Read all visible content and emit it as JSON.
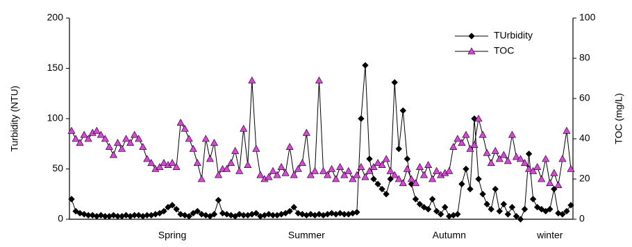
{
  "chart_data": {
    "type": "line",
    "y_label": "Turbidity (NTU)",
    "y2_label": "TOC (mg/L)",
    "categories": [
      null,
      null,
      null,
      null,
      null,
      null,
      null,
      null,
      null,
      null,
      null,
      null,
      null,
      null,
      null,
      null,
      null,
      null,
      null,
      null,
      null,
      null,
      null,
      null,
      "Spring",
      null,
      null,
      null,
      null,
      null,
      null,
      null,
      null,
      null,
      null,
      null,
      null,
      null,
      null,
      null,
      null,
      null,
      null,
      null,
      null,
      null,
      null,
      null,
      null,
      null,
      null,
      null,
      null,
      null,
      null,
      null,
      "Summer",
      null,
      null,
      null,
      null,
      null,
      null,
      null,
      null,
      null,
      null,
      null,
      null,
      null,
      null,
      null,
      null,
      null,
      null,
      null,
      null,
      null,
      null,
      null,
      null,
      null,
      null,
      null,
      null,
      null,
      null,
      null,
      null,
      null,
      "Autumn",
      null,
      null,
      null,
      null,
      null,
      null,
      null,
      null,
      null,
      null,
      null,
      null,
      null,
      null,
      null,
      null,
      null,
      null,
      null,
      null,
      null,
      null,
      null,
      "winter",
      null,
      null,
      null,
      null,
      null
    ],
    "ylim": [
      0,
      200
    ],
    "yticks": [
      0,
      50,
      100,
      150,
      200
    ],
    "y2lim": [
      0,
      100
    ],
    "y2ticks": [
      0,
      20,
      40,
      60,
      80,
      100
    ],
    "legend": "top-right",
    "series": [
      {
        "name": "TUrbidity",
        "color": "#000000",
        "marker": "diamond",
        "values": [
          20,
          8,
          6,
          5,
          4,
          4,
          3,
          4,
          3,
          3,
          4,
          3,
          3,
          4,
          3,
          4,
          4,
          3,
          4,
          4,
          5,
          6,
          8,
          12,
          14,
          10,
          5,
          4,
          3,
          6,
          8,
          5,
          4,
          3,
          5,
          19,
          6,
          5,
          4,
          3,
          5,
          4,
          4,
          5,
          6,
          3,
          4,
          5,
          4,
          4,
          5,
          6,
          8,
          12,
          6,
          5,
          4,
          5,
          4,
          5,
          4,
          5,
          6,
          5,
          6,
          5,
          5,
          6,
          7,
          100,
          153,
          60,
          40,
          35,
          30,
          25,
          40,
          136,
          70,
          108,
          60,
          35,
          20,
          15,
          12,
          10,
          20,
          8,
          5,
          12,
          3,
          4,
          5,
          35,
          50,
          30,
          100,
          40,
          25,
          15,
          10,
          30,
          8,
          15,
          5,
          12,
          3,
          0,
          10,
          65,
          20,
          12,
          10,
          8,
          10,
          30,
          6,
          5,
          8,
          14
        ]
      },
      {
        "name": "TOC",
        "color": "#e040e0",
        "marker": "triangle",
        "axis": "y2",
        "values": [
          44,
          40,
          38,
          42,
          40,
          43,
          44,
          42,
          40,
          36,
          32,
          38,
          35,
          40,
          38,
          42,
          40,
          36,
          30,
          28,
          25,
          26,
          28,
          27,
          28,
          26,
          48,
          45,
          40,
          35,
          28,
          20,
          40,
          30,
          38,
          22,
          25,
          25,
          28,
          34,
          24,
          45,
          27,
          69,
          35,
          22,
          20,
          21,
          24,
          22,
          26,
          23,
          36,
          22,
          25,
          28,
          43,
          22,
          24,
          69,
          24,
          22,
          25,
          20,
          26,
          22,
          24,
          20,
          22,
          26,
          21,
          24,
          26,
          28,
          27,
          30,
          24,
          22,
          20,
          18,
          25,
          20,
          18,
          26,
          22,
          27,
          20,
          24,
          22,
          23,
          24,
          36,
          40,
          38,
          42,
          35,
          37,
          50,
          42,
          33,
          28,
          34,
          30,
          32,
          29,
          42,
          31,
          30,
          28,
          25,
          24,
          26,
          20,
          30,
          18,
          23,
          17,
          30,
          44,
          25
        ]
      }
    ]
  }
}
